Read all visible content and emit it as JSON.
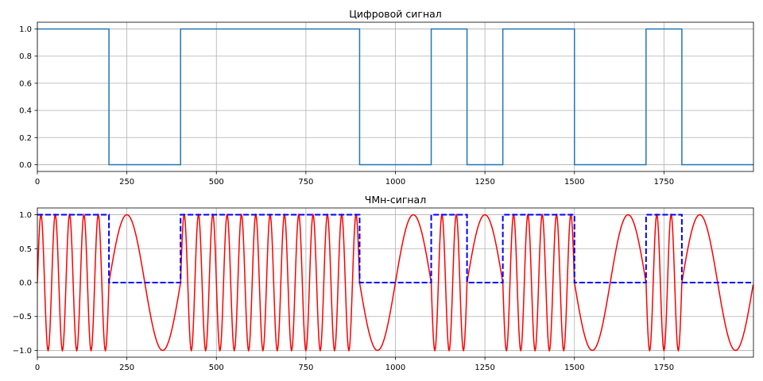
{
  "chart_data": [
    {
      "type": "line",
      "title": "Цифровой сигнал",
      "xlabel": "",
      "ylabel": "",
      "xlim": [
        0,
        2000
      ],
      "ylim": [
        -0.05,
        1.05
      ],
      "grid": true,
      "x_ticks": [
        0,
        250,
        500,
        750,
        1000,
        1250,
        1500,
        1750
      ],
      "x_tick_labels": [
        "0",
        "250",
        "500",
        "750",
        "1000",
        "1250",
        "1500",
        "1750"
      ],
      "y_ticks": [
        0.0,
        0.2,
        0.4,
        0.6,
        0.8,
        1.0
      ],
      "y_tick_labels": [
        "0.0",
        "0.2",
        "0.4",
        "0.6",
        "0.8",
        "1.0"
      ],
      "series": [
        {
          "color": "#1f77b4",
          "style": "solid",
          "shape": "step",
          "x": [
            0,
            200,
            200,
            400,
            400,
            900,
            900,
            1100,
            1100,
            1200,
            1200,
            1300,
            1300,
            1500,
            1500,
            1700,
            1700,
            1800,
            1800,
            2000
          ],
          "y": [
            1,
            1,
            0,
            0,
            1,
            1,
            0,
            0,
            1,
            1,
            0,
            0,
            1,
            1,
            0,
            0,
            1,
            1,
            0,
            0
          ]
        }
      ]
    },
    {
      "type": "line",
      "title": "ЧМн-сигнал",
      "xlabel": "",
      "ylabel": "",
      "xlim": [
        0,
        2000
      ],
      "ylim": [
        -1.1,
        1.1
      ],
      "grid": true,
      "x_ticks": [
        0,
        250,
        500,
        750,
        1000,
        1250,
        1500,
        1750
      ],
      "x_tick_labels": [
        "0",
        "250",
        "500",
        "750",
        "1000",
        "1250",
        "1500",
        "1750"
      ],
      "y_ticks": [
        -1.0,
        -0.5,
        0.0,
        0.5,
        1.0
      ],
      "y_tick_labels": [
        "−1.0",
        "−0.5",
        "0.0",
        "0.5",
        "1.0"
      ],
      "series": [
        {
          "color": "#ff0000",
          "style": "solid",
          "shape": "fsk",
          "bit_period": 100,
          "bits": [
            1,
            1,
            0,
            0,
            1,
            1,
            1,
            1,
            1,
            0,
            0,
            1,
            0,
            1,
            1,
            0,
            0,
            1,
            0,
            0
          ],
          "freq_one": 0.025,
          "freq_zero": 0.005
        },
        {
          "color": "#0000ff",
          "style": "dashed",
          "shape": "step",
          "x": [
            0,
            200,
            200,
            400,
            400,
            900,
            900,
            1100,
            1100,
            1200,
            1200,
            1300,
            1300,
            1500,
            1500,
            1700,
            1700,
            1800,
            1800,
            2000
          ],
          "y": [
            1,
            1,
            0,
            0,
            1,
            1,
            0,
            0,
            1,
            1,
            0,
            0,
            1,
            1,
            0,
            0,
            1,
            1,
            0,
            0
          ]
        }
      ]
    }
  ]
}
